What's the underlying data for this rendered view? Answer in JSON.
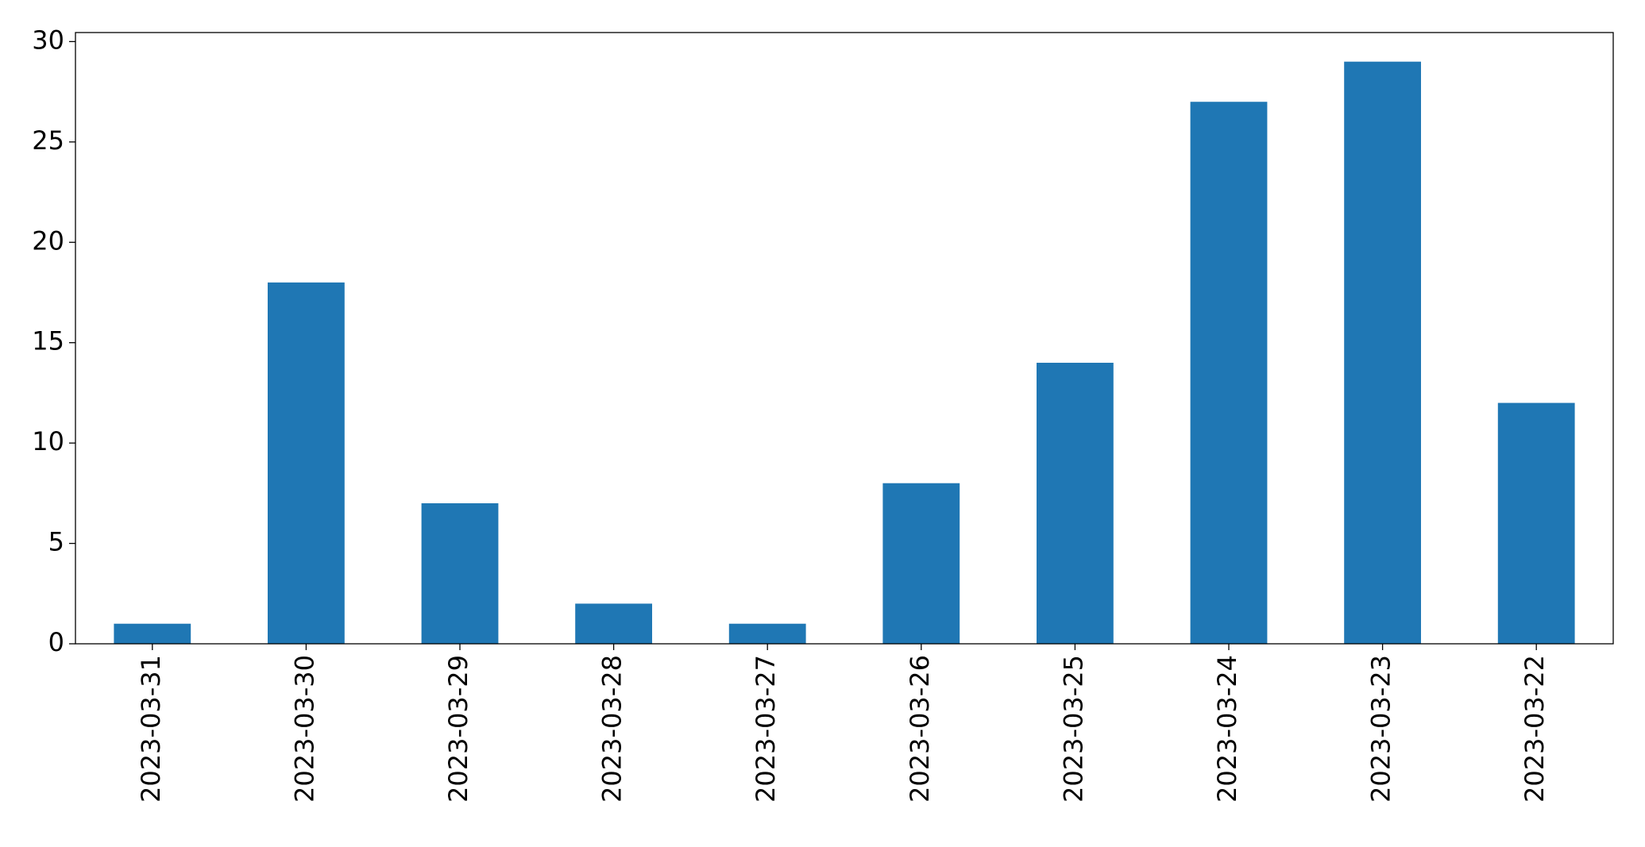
{
  "chart_data": {
    "type": "bar",
    "categories": [
      "2023-03-31",
      "2023-03-30",
      "2023-03-29",
      "2023-03-28",
      "2023-03-27",
      "2023-03-26",
      "2023-03-25",
      "2023-03-24",
      "2023-03-23",
      "2023-03-22"
    ],
    "values": [
      1,
      18,
      7,
      2,
      1,
      8,
      14,
      27,
      29,
      12
    ],
    "color": "#1f77b4",
    "ylim": [
      0,
      30.45
    ],
    "yticks": [
      0,
      5,
      10,
      15,
      20,
      25,
      30
    ],
    "grid": false
  }
}
